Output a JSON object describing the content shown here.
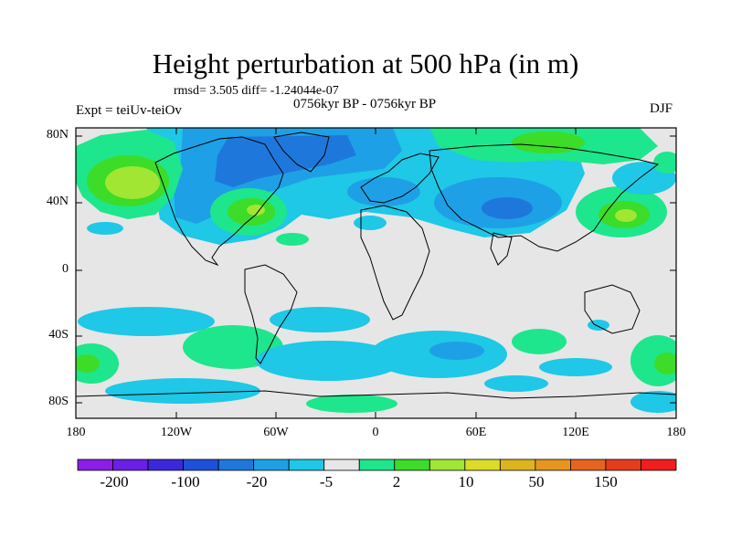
{
  "header": {
    "title": "Height perturbation at 500 hPa (in m)",
    "stats": "rmsd= 3.505 diff= -1.24044e-07",
    "period": "0756kyr BP - 0756kyr BP",
    "experiment": "Expt = teiUv-teiOv",
    "season": "DJF"
  },
  "axes": {
    "y_labels": [
      "80N",
      "40N",
      "0",
      "40S",
      "80S"
    ],
    "x_labels": [
      "180",
      "120W",
      "60W",
      "0",
      "60E",
      "120E",
      "180"
    ]
  },
  "colorbar": {
    "labels": [
      "-200",
      "-100",
      "-20",
      "-5",
      "2",
      "10",
      "50",
      "150"
    ],
    "colors": [
      "#8a1ee6",
      "#6a1ee6",
      "#3c28dc",
      "#1e50dc",
      "#1e78dc",
      "#1ea0e6",
      "#1ec8e6",
      "#e6e6e6",
      "#1ee68c",
      "#3cdc28",
      "#a0e632",
      "#dcdc28",
      "#dcb41e",
      "#e6961e",
      "#e6641e",
      "#e63c1e",
      "#f01e1e"
    ]
  },
  "map": {
    "background_color": "#e6e6e6",
    "projection": "cylindrical equidistant",
    "field": "height perturbation anomaly contours"
  }
}
